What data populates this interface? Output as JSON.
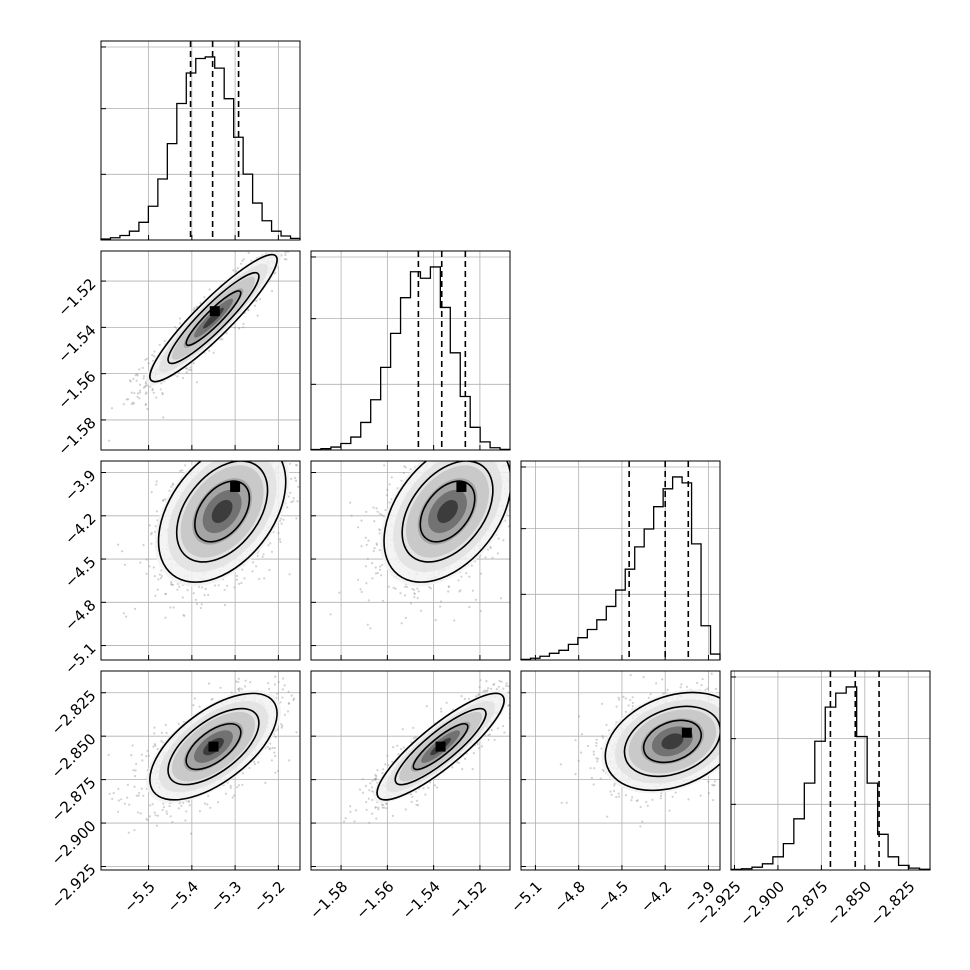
{
  "chart_data": {
    "type": "corner",
    "title": "",
    "params": [
      {
        "xlim": [
          -5.61,
          -5.15
        ],
        "ticks": [
          -5.5,
          -5.4,
          -5.3,
          -5.2
        ],
        "tick_labels": [
          "−5.5",
          "−5.4",
          "−5.3",
          "−5.2"
        ],
        "quantiles": [
          -5.403,
          -5.352,
          -5.292
        ],
        "hist_max": 1140,
        "hist": [
          6,
          14,
          28,
          55,
          110,
          210,
          380,
          600,
          850,
          1040,
          1130,
          1140,
          1070,
          880,
          640,
          410,
          230,
          120,
          55,
          25,
          10
        ]
      },
      {
        "xlim": [
          -1.593,
          -1.507
        ],
        "ticks": [
          -1.58,
          -1.56,
          -1.54,
          -1.52
        ],
        "tick_labels": [
          "−1.58",
          "−1.56",
          "−1.54",
          "−1.52"
        ],
        "quantiles": [
          -1.5466,
          -1.5365,
          -1.5263
        ],
        "hist_max": 1130,
        "hist": [
          3,
          8,
          18,
          40,
          80,
          170,
          310,
          510,
          720,
          940,
          1100,
          1060,
          1130,
          880,
          600,
          330,
          140,
          50,
          14,
          4
        ]
      },
      {
        "xlim": [
          -5.2,
          -3.82
        ],
        "ticks": [
          -5.1,
          -4.8,
          -4.5,
          -4.2,
          -3.9
        ],
        "tick_labels": [
          "−5.1",
          "−4.8",
          "−4.5",
          "−4.2",
          "−3.9"
        ],
        "quantiles": [
          -4.45,
          -4.2,
          -4.04
        ],
        "hist_max": 1230,
        "hist": [
          4,
          12,
          25,
          45,
          65,
          105,
          150,
          205,
          270,
          360,
          470,
          610,
          760,
          880,
          1030,
          1150,
          1230,
          1190,
          780,
          230,
          40
        ]
      },
      {
        "xlim": [
          -2.927,
          -2.8125
        ],
        "ticks": [
          -2.925,
          -2.9,
          -2.875,
          -2.85,
          -2.825
        ],
        "tick_labels": [
          "−2.925",
          "−2.900",
          "−2.875",
          "−2.850",
          "−2.825"
        ],
        "quantiles": [
          -2.8698,
          -2.8555,
          -2.8418
        ],
        "hist_max": 1180,
        "hist": [
          4,
          8,
          18,
          40,
          85,
          170,
          330,
          560,
          830,
          1050,
          1140,
          1180,
          860,
          560,
          230,
          85,
          30,
          12,
          5
        ]
      }
    ],
    "pairs": [
      {
        "row": 1,
        "col": 0,
        "cx": -5.35,
        "cy": -1.536,
        "sx": 0.06,
        "sy": 0.0112,
        "rho": 0.92,
        "peak": [
          -5.347,
          -1.533
        ]
      },
      {
        "row": 2,
        "col": 0,
        "cx": -5.33,
        "cy": -4.17,
        "sx": 0.06,
        "sy": 0.2,
        "rho": 0.42,
        "peak": [
          -5.3,
          -4.0
        ]
      },
      {
        "row": 2,
        "col": 1,
        "cx": -1.534,
        "cy": -4.17,
        "sx": 0.0112,
        "sy": 0.2,
        "rho": 0.42,
        "peak": [
          -1.528,
          -4.0
        ]
      },
      {
        "row": 3,
        "col": 0,
        "cx": -5.35,
        "cy": -2.856,
        "sx": 0.06,
        "sy": 0.0125,
        "rho": 0.62,
        "peak": [
          -5.35,
          -2.856
        ]
      },
      {
        "row": 3,
        "col": 1,
        "cx": -1.537,
        "cy": -2.856,
        "sx": 0.0112,
        "sy": 0.0125,
        "rho": 0.87,
        "peak": [
          -1.537,
          -2.856
        ]
      },
      {
        "row": 3,
        "col": 2,
        "cx": -4.15,
        "cy": -2.853,
        "sx": 0.19,
        "sy": 0.0115,
        "rho": 0.3,
        "peak": [
          -4.05,
          -2.848
        ]
      }
    ]
  }
}
